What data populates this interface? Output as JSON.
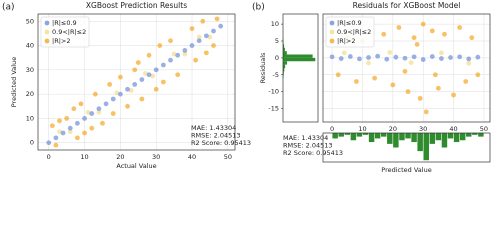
{
  "chart_data": [
    {
      "type": "scatter",
      "panel_label": "(a)",
      "title": "XGBoost Prediction Results",
      "xlabel": "Actual Value",
      "ylabel": "Predicted Value",
      "xlim": [
        -3,
        52
      ],
      "ylim": [
        -3,
        53
      ],
      "xticks": [
        0,
        10,
        20,
        30,
        40,
        50
      ],
      "yticks": [
        0,
        10,
        20,
        30,
        40,
        50
      ],
      "grid": true,
      "legend": "upper left",
      "series": [
        {
          "name": "|R|≤0.9",
          "color": "#6f8fd8",
          "x": [
            0,
            2,
            4,
            6,
            8,
            10,
            12,
            14,
            16,
            18,
            20,
            22,
            24,
            26,
            28,
            30,
            32,
            34,
            36,
            38,
            40,
            42,
            44,
            46,
            48
          ],
          "y": [
            0,
            2,
            4,
            6,
            8,
            10,
            12,
            14,
            16,
            18,
            20,
            22,
            24,
            26,
            28,
            30,
            32,
            34,
            36,
            38,
            40,
            42,
            44,
            46,
            48
          ]
        },
        {
          "name": "0.9<|R|≤2",
          "color": "#f3dc8c",
          "x": [
            3,
            6,
            11,
            14,
            19,
            23,
            27,
            29,
            35,
            38,
            42,
            45
          ],
          "y": [
            4.5,
            4.5,
            12.5,
            12.5,
            20.5,
            21.5,
            28.5,
            27.5,
            36.5,
            36.5,
            43.5,
            43.5
          ]
        },
        {
          "name": "|R|>2",
          "color": "#f5a623",
          "x": [
            1,
            2,
            5,
            7,
            8,
            9,
            10,
            13,
            15,
            17,
            18,
            20,
            22,
            25,
            26,
            28,
            30,
            31,
            32,
            34,
            36,
            40,
            41,
            43,
            44,
            46,
            47,
            3,
            12,
            24
          ],
          "y": [
            7,
            -1,
            10,
            14,
            2,
            16,
            4,
            20,
            8,
            24,
            12,
            27,
            15,
            33,
            18,
            36,
            22,
            40,
            25,
            42,
            28,
            47,
            34,
            50,
            37,
            40,
            51,
            9,
            6,
            30
          ]
        }
      ],
      "annotations": [
        "MAE: 1.43304",
        "RMSE: 2.04513",
        "R2 Score: 0.95413"
      ]
    },
    {
      "type": "scatter",
      "panel_label": "(b)",
      "title": "Residuals for XGBoost Model",
      "xlim": [
        -3,
        52
      ],
      "ylim": [
        -19,
        13
      ],
      "xticks": [
        0,
        10,
        20,
        30,
        40,
        50
      ],
      "yticks": [
        -15,
        -10,
        -5,
        0,
        5,
        10
      ],
      "grid": true,
      "legend": "upper left",
      "series": [
        {
          "name": "|R|≤0.9",
          "color": "#6f8fd8",
          "x": [
            0,
            3,
            6,
            9,
            12,
            15,
            18,
            21,
            24,
            27,
            30,
            33,
            36,
            39,
            42,
            45,
            48
          ],
          "y": [
            0.3,
            -0.2,
            0.4,
            -0.3,
            0.1,
            0.5,
            -0.4,
            0.2,
            -0.1,
            0.3,
            -0.5,
            0.4,
            -0.2,
            0.1,
            0.3,
            -0.3,
            0.2
          ]
        },
        {
          "name": "0.9<|R|≤2",
          "color": "#f3dc8c",
          "x": [
            4,
            12,
            19,
            26,
            36,
            45
          ],
          "y": [
            1.5,
            -1.5,
            1.6,
            -1.4,
            1.5,
            -1.6
          ]
        },
        {
          "name": "|R|>2",
          "color": "#f5a623",
          "x": [
            2,
            5,
            8,
            10,
            14,
            17,
            20,
            22,
            25,
            27,
            29,
            30,
            31,
            33,
            35,
            37,
            40,
            42,
            44,
            46,
            48,
            24,
            28,
            34
          ],
          "y": [
            -5,
            6,
            -7,
            5,
            -6,
            7,
            -8,
            9,
            -10,
            6,
            -12,
            10,
            -16,
            8,
            -9,
            7,
            -11,
            9,
            -7,
            6,
            -5,
            -4,
            4,
            -5
          ]
        }
      ]
    },
    {
      "type": "histogram",
      "orientation": "horizontal",
      "ylabel": "Residuals",
      "color": "#2e8b2e",
      "bins": [
        -6,
        -5,
        -4,
        -3,
        -2,
        -1,
        0,
        1,
        2,
        3,
        4,
        5,
        6
      ],
      "counts": [
        2,
        3,
        5,
        8,
        15,
        120,
        110,
        14,
        7,
        4,
        2,
        1
      ],
      "xlim": [
        0,
        130
      ],
      "ylim": [
        -19,
        13
      ],
      "yticks": [
        -15,
        -10,
        -5,
        0,
        5,
        10
      ]
    },
    {
      "type": "histogram",
      "orientation": "vertical",
      "inverted": true,
      "xlabel": "Predicted Value",
      "color": "#2e8b2e",
      "bins": [
        0,
        2,
        4,
        6,
        8,
        10,
        12,
        14,
        16,
        18,
        20,
        22,
        24,
        26,
        28,
        30,
        32,
        34,
        36,
        38,
        40,
        42,
        44,
        46,
        48,
        50
      ],
      "counts": [
        3,
        2,
        1,
        4,
        2,
        1,
        5,
        3,
        2,
        6,
        8,
        4,
        3,
        5,
        10,
        15,
        6,
        4,
        8,
        3,
        5,
        4,
        2,
        1,
        2
      ],
      "xlim": [
        -3,
        52
      ],
      "ylim": [
        0,
        16
      ],
      "annotations": [
        "MAE: 1.43304",
        "RMSE: 2.04513",
        "R2 Score: 0.95413"
      ]
    }
  ]
}
